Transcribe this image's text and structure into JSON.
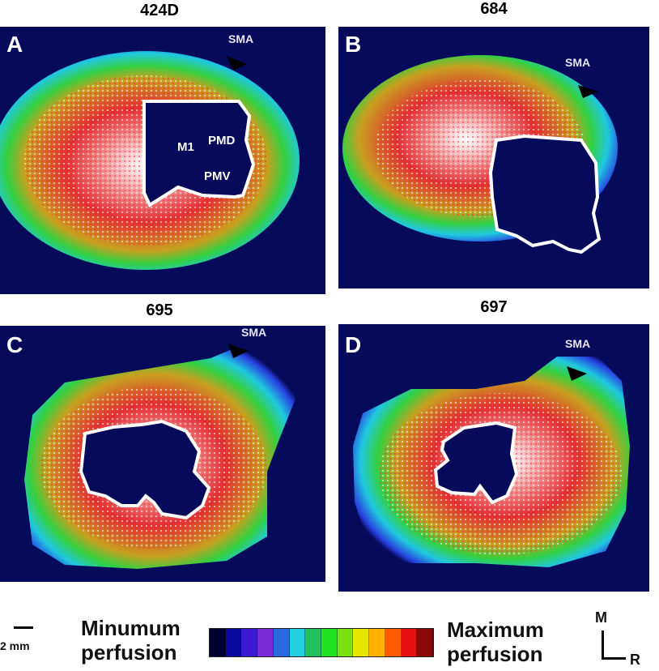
{
  "panels": [
    {
      "id": "A",
      "letter": "A",
      "title": "424D",
      "sma": "SMA",
      "labels": [
        "M1",
        "PMD",
        "PMV"
      ]
    },
    {
      "id": "B",
      "letter": "B",
      "title": "684",
      "sma": "SMA",
      "labels": []
    },
    {
      "id": "C",
      "letter": "C",
      "title": "695",
      "sma": "SMA",
      "labels": []
    },
    {
      "id": "D",
      "letter": "D",
      "title": "697",
      "sma": "SMA",
      "labels": []
    }
  ],
  "legend": {
    "min_line1": "Minumum",
    "min_line2": "perfusion",
    "max_line1": "Maximum",
    "max_line2": "perfusion",
    "colors": [
      "#000033",
      "#0a0aa0",
      "#3a1ad0",
      "#7a2ad8",
      "#2a6ae0",
      "#22d0e0",
      "#22c060",
      "#22e022",
      "#7ae012",
      "#e6e600",
      "#ffb000",
      "#ff5a00",
      "#e81010",
      "#8a0808"
    ]
  },
  "scale": {
    "text": "2 mm"
  },
  "compass": {
    "medial": "M",
    "right": "R"
  }
}
